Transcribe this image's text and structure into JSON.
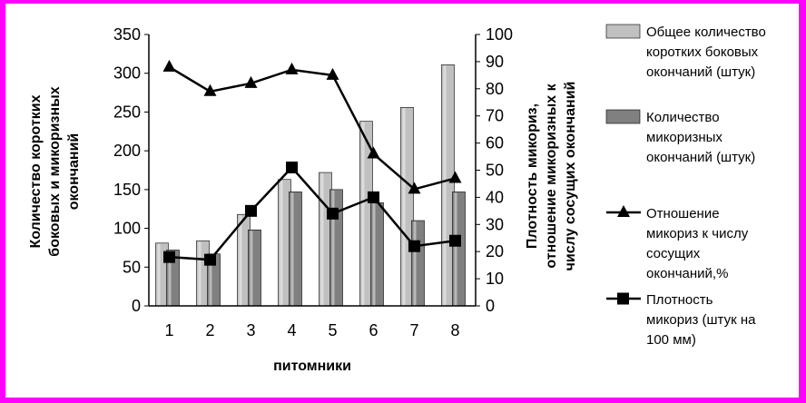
{
  "chart_data": {
    "type": "bar",
    "categories": [
      "1",
      "2",
      "3",
      "4",
      "5",
      "6",
      "7",
      "8"
    ],
    "xlabel": "питомники",
    "ylabel_left_lines": [
      "Количество коротких",
      "боковых и микоризных",
      "окончаний"
    ],
    "ylabel_right_lines": [
      "Плотность микориз,",
      "отношение микоризных к",
      "числу сосущих окончаний"
    ],
    "y_left": {
      "lim": [
        0,
        350
      ],
      "ticks": [
        "0",
        "50",
        "100",
        "150",
        "200",
        "250",
        "300",
        "350"
      ]
    },
    "y_right": {
      "lim": [
        0,
        100
      ],
      "ticks": [
        "0",
        "10",
        "20",
        "30",
        "40",
        "50",
        "60",
        "70",
        "80",
        "90",
        "100"
      ]
    },
    "series": [
      {
        "name_lines": [
          "Общее количество",
          "коротких боковых",
          "окончаний (штук)"
        ],
        "kind": "bar",
        "axis": "left",
        "color": "#c0c0c0",
        "values": [
          81,
          84,
          118,
          163,
          172,
          238,
          256,
          311
        ]
      },
      {
        "name_lines": [
          "Количество",
          "микоризных",
          "окончаний (штук)"
        ],
        "kind": "bar",
        "axis": "left",
        "color": "#808080",
        "values": [
          72,
          67,
          98,
          147,
          150,
          133,
          110,
          147
        ]
      },
      {
        "name_lines": [
          "Отношение",
          "микориз к числу",
          "сосущих",
          "окончаний,%"
        ],
        "kind": "line",
        "marker": "triangle",
        "axis": "right",
        "color": "#000000",
        "values": [
          88,
          79,
          82,
          87,
          85,
          56,
          43,
          47
        ]
      },
      {
        "name_lines": [
          "Плотность",
          "микориз (штук на",
          "100 мм)"
        ],
        "kind": "line",
        "marker": "square",
        "axis": "right",
        "color": "#000000",
        "values": [
          18,
          17,
          35,
          51,
          34,
          40,
          22,
          24
        ]
      }
    ],
    "grid": false,
    "legend_position": "right"
  }
}
